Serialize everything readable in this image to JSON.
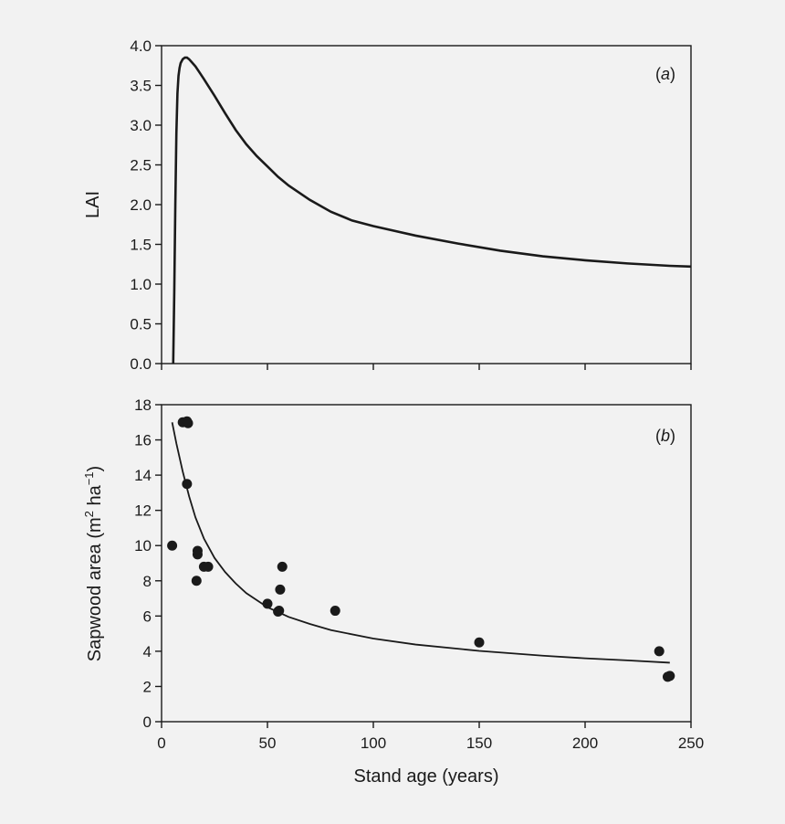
{
  "chart_data": [
    {
      "panel": "a",
      "panel_label_open": "(",
      "panel_label_letter": "a",
      "panel_label_close": ")",
      "type": "line",
      "xlabel": "",
      "ylabel": "LAI",
      "xlim": [
        0,
        250
      ],
      "ylim": [
        0,
        4.0
      ],
      "y_ticks": [
        "0.0",
        "0.5",
        "1.0",
        "1.5",
        "2.0",
        "2.5",
        "3.0",
        "3.5",
        "4.0"
      ],
      "x_tick_labels_shown": false,
      "series": [
        {
          "x": [
            5.5,
            6,
            6.5,
            7,
            7.5,
            8,
            8.5,
            9,
            10,
            11,
            12,
            13,
            14,
            16,
            18,
            20,
            25,
            30,
            35,
            40,
            45,
            50,
            55,
            60,
            70,
            80,
            90,
            100,
            120,
            140,
            160,
            180,
            200,
            220,
            240,
            250
          ],
          "y": [
            0.0,
            0.9,
            2.0,
            2.9,
            3.4,
            3.62,
            3.72,
            3.78,
            3.83,
            3.85,
            3.85,
            3.83,
            3.8,
            3.74,
            3.66,
            3.58,
            3.37,
            3.15,
            2.94,
            2.76,
            2.61,
            2.48,
            2.35,
            2.24,
            2.06,
            1.91,
            1.8,
            1.73,
            1.61,
            1.51,
            1.42,
            1.35,
            1.3,
            1.26,
            1.23,
            1.22
          ]
        }
      ]
    },
    {
      "panel": "b",
      "panel_label_open": "(",
      "panel_label_letter": "b",
      "panel_label_close": ")",
      "type": "scatter",
      "xlabel": "Stand age (years)",
      "ylabel_main": "Sapwood area (m",
      "ylabel_sup1": "2",
      "ylabel_mid": " ha",
      "ylabel_sup2": "−1",
      "ylabel_end": ")",
      "xlim": [
        0,
        250
      ],
      "ylim": [
        0,
        18
      ],
      "x_ticks": [
        "0",
        "50",
        "100",
        "150",
        "200",
        "250"
      ],
      "y_ticks": [
        "0",
        "2",
        "4",
        "6",
        "8",
        "10",
        "12",
        "14",
        "16",
        "18"
      ],
      "points": {
        "x": [
          5,
          10,
          12,
          12.5,
          12,
          16.5,
          17,
          17,
          20,
          22,
          50,
          55,
          55.5,
          56,
          57,
          82,
          150,
          235,
          239,
          240
        ],
        "y": [
          10.0,
          17.0,
          17.05,
          16.95,
          13.5,
          8.0,
          9.5,
          9.7,
          8.8,
          8.8,
          6.7,
          6.25,
          6.3,
          7.5,
          8.8,
          6.3,
          4.5,
          4.0,
          2.55,
          2.6
        ]
      },
      "fit": {
        "x": [
          5,
          7,
          10,
          13,
          16,
          20,
          25,
          30,
          35,
          40,
          50,
          60,
          70,
          80,
          100,
          120,
          150,
          180,
          200,
          220,
          240
        ],
        "y": [
          17.0,
          15.8,
          14.2,
          12.8,
          11.6,
          10.4,
          9.3,
          8.5,
          7.85,
          7.3,
          6.5,
          5.95,
          5.55,
          5.2,
          4.72,
          4.38,
          4.02,
          3.75,
          3.6,
          3.48,
          3.35
        ]
      }
    }
  ],
  "colors": {
    "background": "#f2f2f2",
    "ink": "#1a1a1a"
  }
}
